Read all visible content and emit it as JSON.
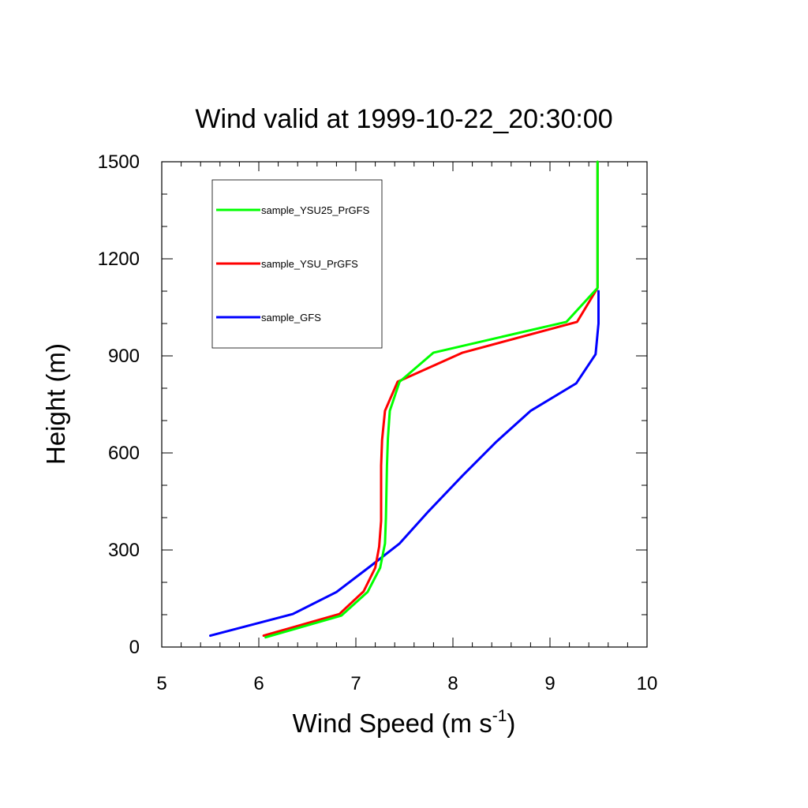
{
  "chart_data": {
    "type": "line",
    "title": "Wind valid at 1999-10-22_20:30:00",
    "xlabel": "Wind Speed (m s",
    "xlabel_superscript": "-1",
    "xlabel_suffix": ")",
    "ylabel": "Height (m)",
    "xlim": [
      5,
      10
    ],
    "ylim": [
      0,
      1500
    ],
    "x_ticks": [
      5,
      6,
      7,
      8,
      9,
      10
    ],
    "y_ticks": [
      0,
      300,
      600,
      900,
      1200,
      1500
    ],
    "grid": false,
    "legend_position": "top-left",
    "series": [
      {
        "name": "sample_YSU25_PrGFS",
        "color": "#00ff00",
        "points": [
          [
            6.07,
            30
          ],
          [
            6.85,
            97
          ],
          [
            7.12,
            170
          ],
          [
            7.25,
            245
          ],
          [
            7.3,
            320
          ],
          [
            7.31,
            400
          ],
          [
            7.32,
            560
          ],
          [
            7.33,
            645
          ],
          [
            7.35,
            730
          ],
          [
            7.45,
            820
          ],
          [
            7.8,
            910
          ],
          [
            9.17,
            1005
          ],
          [
            9.49,
            1110
          ],
          [
            9.49,
            1300
          ],
          [
            9.49,
            1500
          ]
        ]
      },
      {
        "name": "sample_YSU_PrGFS",
        "color": "#ff0000",
        "points": [
          [
            6.05,
            35
          ],
          [
            6.83,
            102
          ],
          [
            7.08,
            172
          ],
          [
            7.2,
            245
          ],
          [
            7.24,
            310
          ],
          [
            7.26,
            390
          ],
          [
            7.26,
            560
          ],
          [
            7.27,
            640
          ],
          [
            7.3,
            730
          ],
          [
            7.43,
            820
          ],
          [
            8.1,
            910
          ],
          [
            9.28,
            1005
          ],
          [
            9.49,
            1110
          ],
          [
            9.49,
            1300
          ],
          [
            9.49,
            1500
          ]
        ]
      },
      {
        "name": "sample_GFS",
        "color": "#0000ff",
        "points": [
          [
            5.5,
            35
          ],
          [
            6.35,
            102
          ],
          [
            6.8,
            170
          ],
          [
            7.15,
            250
          ],
          [
            7.45,
            320
          ],
          [
            7.75,
            420
          ],
          [
            8.1,
            530
          ],
          [
            8.45,
            635
          ],
          [
            8.8,
            730
          ],
          [
            9.27,
            815
          ],
          [
            9.47,
            905
          ],
          [
            9.5,
            1000
          ],
          [
            9.5,
            1100
          ]
        ]
      }
    ]
  }
}
